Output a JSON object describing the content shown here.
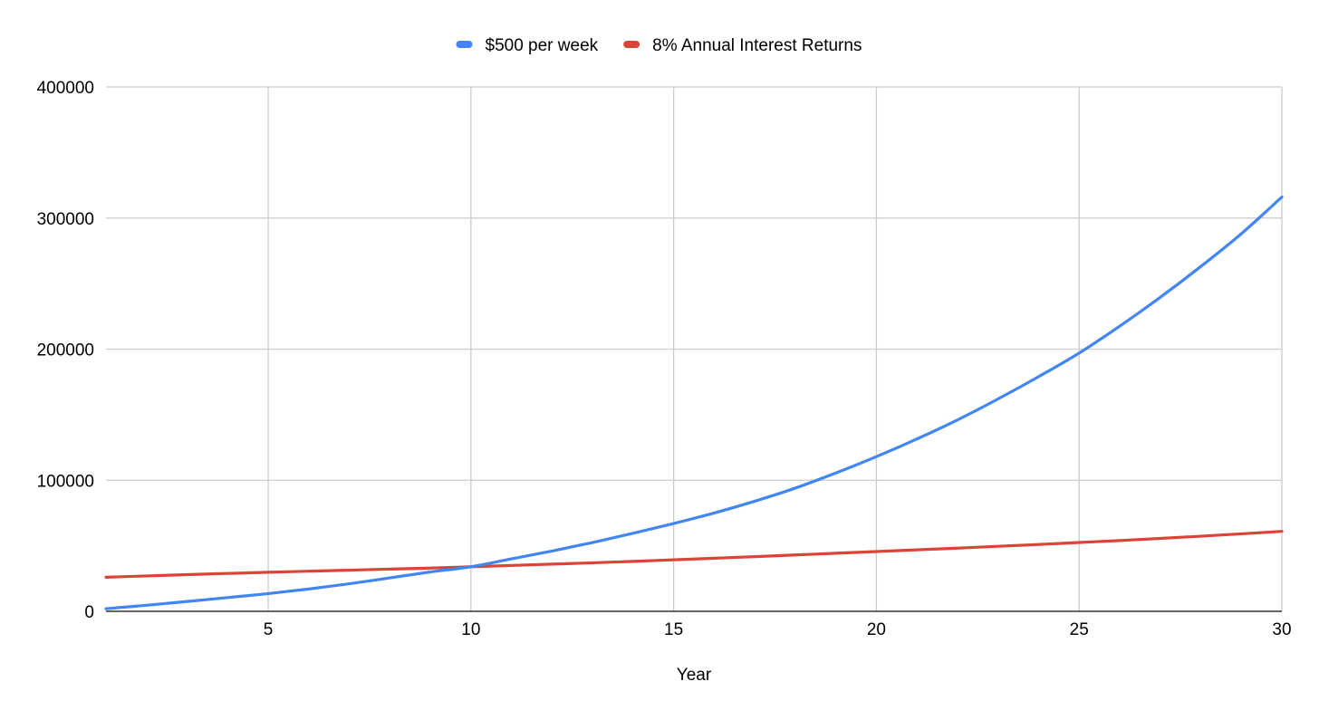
{
  "chart_data": {
    "type": "line",
    "title": "",
    "xlabel": "Year",
    "ylabel": "",
    "xlim": [
      1,
      30
    ],
    "ylim": [
      0,
      400000
    ],
    "x_ticks": [
      5,
      10,
      15,
      20,
      25,
      30
    ],
    "x_tick_labels": [
      "5",
      "10",
      "15",
      "20",
      "25",
      "30"
    ],
    "y_ticks": [
      0,
      100000,
      200000,
      300000,
      400000
    ],
    "y_tick_labels": [
      "0",
      "100000",
      "200000",
      "300000",
      "400000"
    ],
    "grid": true,
    "legend_position": "top-center",
    "x": [
      1,
      2,
      3,
      4,
      5,
      6,
      7,
      8,
      9,
      10,
      11,
      12,
      13,
      14,
      15,
      16,
      17,
      18,
      19,
      20,
      21,
      22,
      23,
      24,
      25,
      26,
      27,
      28,
      29,
      30
    ],
    "series": [
      {
        "name": "$500 per week",
        "color": "#4285F4",
        "values": [
          2000,
          4600,
          7500,
          10500,
          13500,
          17000,
          21000,
          25500,
          30000,
          34000,
          40000,
          46000,
          52500,
          59500,
          67000,
          75000,
          84000,
          94000,
          105500,
          118000,
          131500,
          146000,
          162000,
          179000,
          197000,
          217500,
          239500,
          263000,
          288000,
          316000
        ]
      },
      {
        "name": "8% Annual Interest Returns",
        "color": "#DB4437",
        "values": [
          26000,
          27000,
          28000,
          28900,
          29800,
          30600,
          31400,
          32200,
          33000,
          34000,
          35000,
          36000,
          37000,
          38100,
          39300,
          40500,
          41700,
          43000,
          44300,
          45600,
          46900,
          48200,
          49600,
          51000,
          52500,
          54000,
          55600,
          57300,
          59100,
          61000
        ]
      }
    ]
  }
}
